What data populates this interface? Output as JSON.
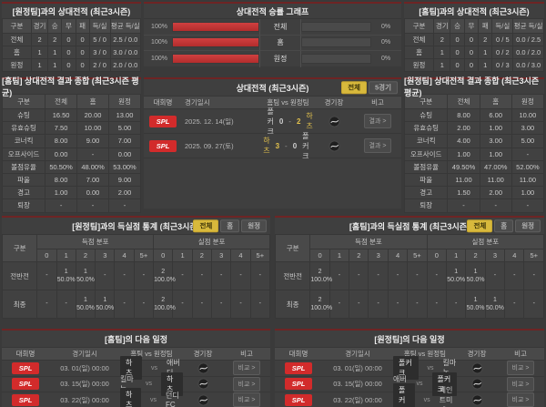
{
  "colors": {
    "accent_red": "#6e2424",
    "bar_red": "#c23333",
    "badge_red": "#d22b2b",
    "highlight_yellow": "#e3c24d",
    "selected_yellow": "#d8b93c"
  },
  "vs": "vs",
  "sep": "-",
  "p": {
    "h2h_away": {
      "title": "[원정팀]과의 상대전적 (최근3시즌)",
      "cols": [
        "구분",
        "경기",
        "승",
        "무",
        "패",
        "득/실",
        "평균 득/실"
      ],
      "rows": [
        [
          "전체",
          "2",
          "2",
          "0",
          "0",
          "5 / 0",
          "2.5 / 0.0"
        ],
        [
          "홈",
          "1",
          "1",
          "0",
          "0",
          "3 / 0",
          "3.0 / 0.0"
        ],
        [
          "원정",
          "1",
          "1",
          "0",
          "0",
          "2 / 0",
          "2.0 / 0.0"
        ]
      ]
    },
    "graph": {
      "title": "상대전적 승률 그래프",
      "rows": [
        {
          "lpct": "100%",
          "lval": 100,
          "label": "전체",
          "rval": 0,
          "rpct": "0%"
        },
        {
          "lpct": "100%",
          "lval": 100,
          "label": "홈",
          "rval": 0,
          "rpct": "0%"
        },
        {
          "lpct": "100%",
          "lval": 100,
          "label": "원정",
          "rval": 0,
          "rpct": "0%"
        }
      ]
    },
    "h2h_home": {
      "title": "[홈팀]과의 상대전적 (최근3시즌)",
      "cols": [
        "구분",
        "경기",
        "승",
        "무",
        "패",
        "득/실",
        "평균 득/실"
      ],
      "rows": [
        [
          "전체",
          "2",
          "0",
          "0",
          "2",
          "0 / 5",
          "0.0 / 2.5"
        ],
        [
          "홈",
          "1",
          "0",
          "0",
          "1",
          "0 / 2",
          "0.0 / 2.0"
        ],
        [
          "원정",
          "1",
          "0",
          "0",
          "1",
          "0 / 3",
          "0.0 / 3.0"
        ]
      ]
    },
    "sum_home": {
      "title": "[홈팀] 상대전적 결과 종합 (최근3시즌 평균)",
      "cols": [
        "구분",
        "전체",
        "홈",
        "원정"
      ],
      "rows": [
        [
          "슈팅",
          "16.50",
          "20.00",
          "13.00"
        ],
        [
          "유효슈팅",
          "7.50",
          "10.00",
          "5.00"
        ],
        [
          "코너킥",
          "8.00",
          "9.00",
          "7.00"
        ],
        [
          "오프사이드",
          "0.00",
          "-",
          "0.00"
        ],
        [
          "볼점유율",
          "50.50%",
          "48.00%",
          "53.00%"
        ],
        [
          "파울",
          "8.00",
          "7.00",
          "9.00"
        ],
        [
          "경고",
          "1.00",
          "0.00",
          "2.00"
        ],
        [
          "퇴장",
          "-",
          "-",
          "-"
        ]
      ]
    },
    "sum_away": {
      "title": "[원정팀] 상대전적 결과 종합 (최근3시즌 평균)",
      "cols": [
        "구분",
        "전체",
        "홈",
        "원정"
      ],
      "rows": [
        [
          "슈팅",
          "8.00",
          "6.00",
          "10.00"
        ],
        [
          "유효슈팅",
          "2.00",
          "1.00",
          "3.00"
        ],
        [
          "코너킥",
          "4.00",
          "3.00",
          "5.00"
        ],
        [
          "오프사이드",
          "1.00",
          "1.00",
          "-"
        ],
        [
          "볼점유율",
          "49.50%",
          "47.00%",
          "52.00%"
        ],
        [
          "파울",
          "11.00",
          "11.00",
          "11.00"
        ],
        [
          "경고",
          "1.50",
          "2.00",
          "1.00"
        ],
        [
          "퇴장",
          "-",
          "-",
          "-"
        ]
      ]
    },
    "matches": {
      "title": "상대전적 (최근3시즌)",
      "filters": [
        "전체",
        "5경기"
      ],
      "cols": [
        "대회명",
        "경기일시",
        "홈팀 vs 원정팀",
        "경기장",
        "비고"
      ],
      "rows": [
        {
          "league": "SPL",
          "date": "2025. 12. 14(일)",
          "home": "폴커크",
          "hs": "0",
          "as": "2",
          "away": "하츠",
          "action": "결과 >"
        },
        {
          "league": "SPL",
          "date": "2025. 09. 27(토)",
          "home": "하츠",
          "hs": "3",
          "as": "0",
          "away": "폴커크",
          "action": "결과 >"
        }
      ]
    },
    "gs_home": {
      "title": "[원정팀]과의 득실점 통계 (최근3시즌)",
      "filters": [
        "전체",
        "홈",
        "원정"
      ],
      "col_label": "구분",
      "groups": [
        "득점 분포",
        "실점 분포"
      ],
      "bins": [
        "0",
        "1",
        "2",
        "3",
        "4",
        "5+"
      ],
      "rows": [
        {
          "label": "전반전",
          "cells": [
            "-",
            "1\n50.0%",
            "1\n50.0%",
            "-",
            "-",
            "-",
            "2\n100.0%",
            "-",
            "-",
            "-",
            "-",
            "-"
          ]
        },
        {
          "label": "최종",
          "cells": [
            "-",
            "-",
            "1\n50.0%",
            "1\n50.0%",
            "-",
            "-",
            "2\n100.0%",
            "-",
            "-",
            "-",
            "-",
            "-"
          ]
        }
      ]
    },
    "gs_away": {
      "title": "[홈팀]과의 득실점 통계 (최근3시즌)",
      "filters": [
        "전체",
        "홈",
        "원정"
      ],
      "col_label": "구분",
      "groups": [
        "득점 분포",
        "실점 분포"
      ],
      "bins": [
        "0",
        "1",
        "2",
        "3",
        "4",
        "5+"
      ],
      "rows": [
        {
          "label": "전반전",
          "cells": [
            "2\n100.0%",
            "-",
            "-",
            "-",
            "-",
            "-",
            "-",
            "1\n50.0%",
            "1\n50.0%",
            "-",
            "-",
            "-"
          ]
        },
        {
          "label": "최종",
          "cells": [
            "2\n100.0%",
            "-",
            "-",
            "-",
            "-",
            "-",
            "-",
            "-",
            "1\n50.0%",
            "1\n50.0%",
            "-",
            "-"
          ]
        }
      ]
    },
    "sch_home": {
      "title": "[홈팀]의 다음 일정",
      "cols": [
        "대회명",
        "경기일시",
        "홈팀 vs 원정팀",
        "경기장",
        "비고"
      ],
      "rows": [
        {
          "league": "SPL",
          "date": "03. 01(일) 00:00",
          "home": "하츠",
          "away": "애버딘",
          "action": "비교 >"
        },
        {
          "league": "SPL",
          "date": "03. 15(일) 00:00",
          "home": "킬마녹",
          "away": "하츠",
          "action": "비교 >"
        },
        {
          "league": "SPL",
          "date": "03. 22(일) 00:00",
          "home": "하츠",
          "away": "던디FC",
          "action": "비교 >"
        }
      ]
    },
    "sch_away": {
      "title": "[원정팀]의 다음 일정",
      "cols": [
        "대회명",
        "경기일시",
        "홈팀 vs 원정팀",
        "경기장",
        "비고"
      ],
      "rows": [
        {
          "league": "SPL",
          "date": "03. 01(일) 00:00",
          "home": "폴커크",
          "away": "킬마녹",
          "action": "비교 >"
        },
        {
          "league": "SPL",
          "date": "03. 15(일) 00:00",
          "home": "애버딘",
          "away": "폴커크",
          "action": "비교 >"
        },
        {
          "league": "SPL",
          "date": "03. 22(일) 00:00",
          "home": "폴커크",
          "away": "세인트미렌",
          "action": "비교 >"
        }
      ]
    }
  }
}
